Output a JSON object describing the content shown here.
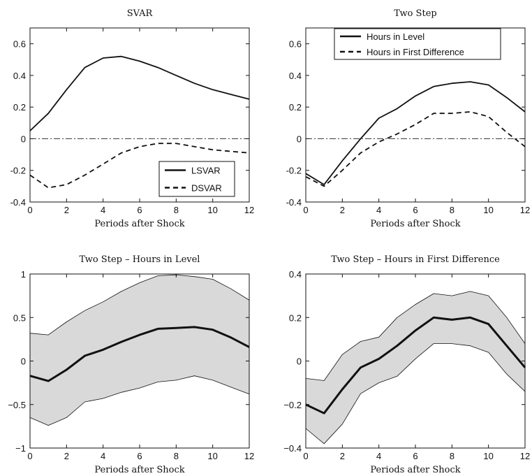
{
  "chart_data": [
    {
      "type": "line",
      "title": "SVAR",
      "xlabel": "Periods after Shock",
      "ylabel": "",
      "xlim": [
        0,
        12
      ],
      "ylim": [
        -0.4,
        0.7
      ],
      "xticks": [
        0,
        2,
        4,
        6,
        8,
        10,
        12
      ],
      "xtick_labels": [
        "0",
        "2",
        "4",
        "6",
        "8",
        "10",
        "12"
      ],
      "yticks": [
        -0.4,
        -0.2,
        0,
        0.2,
        0.4,
        0.6
      ],
      "ytick_labels": [
        "-0.4",
        "-0.2",
        "0",
        "0.2",
        "0.4",
        "0.6"
      ],
      "zero_line": true,
      "legend": "bottom-right",
      "x": [
        0,
        1,
        2,
        3,
        4,
        5,
        6,
        7,
        8,
        9,
        10,
        11,
        12
      ],
      "series": [
        {
          "name": "LSVAR",
          "style": "solid",
          "values": [
            0.05,
            0.16,
            0.31,
            0.45,
            0.51,
            0.52,
            0.49,
            0.45,
            0.4,
            0.35,
            0.31,
            0.28,
            0.25
          ]
        },
        {
          "name": "DSVAR",
          "style": "dashed",
          "values": [
            -0.23,
            -0.31,
            -0.29,
            -0.23,
            -0.16,
            -0.09,
            -0.05,
            -0.03,
            -0.03,
            -0.05,
            -0.07,
            -0.08,
            -0.09
          ]
        }
      ]
    },
    {
      "type": "line",
      "title": "Two Step",
      "xlabel": "Periods after Shock",
      "ylabel": "",
      "xlim": [
        0,
        12
      ],
      "ylim": [
        -0.4,
        0.7
      ],
      "xticks": [
        0,
        2,
        4,
        6,
        8,
        10,
        12
      ],
      "xtick_labels": [
        "0",
        "2",
        "4",
        "6",
        "8",
        "10",
        "12"
      ],
      "yticks": [
        -0.4,
        -0.2,
        0,
        0.2,
        0.4,
        0.6
      ],
      "ytick_labels": [
        "-0.4",
        "-0.2",
        "0",
        "0.2",
        "0.4",
        "0.6"
      ],
      "zero_line": true,
      "legend": "top-right",
      "x": [
        0,
        1,
        2,
        3,
        4,
        5,
        6,
        7,
        8,
        9,
        10,
        11,
        12
      ],
      "series": [
        {
          "name": "Hours in Level",
          "style": "solid",
          "values": [
            -0.22,
            -0.29,
            -0.14,
            0.0,
            0.13,
            0.19,
            0.27,
            0.33,
            0.35,
            0.36,
            0.34,
            0.26,
            0.17
          ]
        },
        {
          "name": "Hours in First Difference",
          "style": "dashed",
          "values": [
            -0.24,
            -0.3,
            -0.2,
            -0.09,
            -0.02,
            0.03,
            0.09,
            0.16,
            0.16,
            0.17,
            0.14,
            0.04,
            -0.05
          ]
        }
      ]
    },
    {
      "type": "area",
      "title": "Two Step – Hours in Level",
      "xlabel": "Periods after Shock",
      "ylabel": "",
      "xlim": [
        0,
        12
      ],
      "ylim": [
        -1,
        1
      ],
      "xticks": [
        0,
        2,
        4,
        6,
        8,
        10,
        12
      ],
      "xtick_labels": [
        "0",
        "2",
        "4",
        "6",
        "8",
        "10",
        "12"
      ],
      "yticks": [
        -1,
        -0.5,
        0,
        0.5,
        1
      ],
      "ytick_labels": [
        "−1",
        "−0.5",
        "0",
        "0.5",
        "1"
      ],
      "zero_line": false,
      "band_color": "#d9d9d9",
      "x": [
        0,
        1,
        2,
        3,
        4,
        5,
        6,
        7,
        8,
        9,
        10,
        11,
        12
      ],
      "series": [
        {
          "name": "",
          "style": "thick",
          "values": [
            -0.17,
            -0.23,
            -0.1,
            0.06,
            0.13,
            0.22,
            0.3,
            0.37,
            0.38,
            0.39,
            0.36,
            0.27,
            0.16
          ]
        },
        {
          "name": "",
          "role": "upper",
          "values": [
            0.32,
            0.3,
            0.45,
            0.58,
            0.68,
            0.8,
            0.9,
            0.98,
            0.99,
            0.97,
            0.94,
            0.83,
            0.7
          ]
        },
        {
          "name": "",
          "role": "lower",
          "values": [
            -0.65,
            -0.74,
            -0.65,
            -0.47,
            -0.43,
            -0.36,
            -0.31,
            -0.24,
            -0.22,
            -0.17,
            -0.22,
            -0.3,
            -0.38
          ]
        }
      ]
    },
    {
      "type": "area",
      "title": "Two Step – Hours in First Difference",
      "xlabel": "Periods after Shock",
      "ylabel": "",
      "xlim": [
        0,
        12
      ],
      "ylim": [
        -0.4,
        0.4
      ],
      "xticks": [
        0,
        2,
        4,
        6,
        8,
        10,
        12
      ],
      "xtick_labels": [
        "0",
        "2",
        "4",
        "6",
        "8",
        "10",
        "12"
      ],
      "yticks": [
        -0.4,
        -0.2,
        0,
        0.2,
        0.4
      ],
      "ytick_labels": [
        "−0.4",
        "−0.2",
        "0",
        "0.2",
        "0.4"
      ],
      "zero_line": false,
      "band_color": "#d9d9d9",
      "x": [
        0,
        1,
        2,
        3,
        4,
        5,
        6,
        7,
        8,
        9,
        10,
        11,
        12
      ],
      "series": [
        {
          "name": "",
          "style": "thick",
          "values": [
            -0.2,
            -0.24,
            -0.13,
            -0.03,
            0.01,
            0.07,
            0.14,
            0.2,
            0.19,
            0.2,
            0.17,
            0.07,
            -0.03
          ]
        },
        {
          "name": "",
          "role": "upper",
          "values": [
            -0.08,
            -0.09,
            0.03,
            0.09,
            0.11,
            0.2,
            0.26,
            0.31,
            0.3,
            0.32,
            0.3,
            0.2,
            0.08
          ]
        },
        {
          "name": "",
          "role": "lower",
          "values": [
            -0.31,
            -0.38,
            -0.29,
            -0.15,
            -0.1,
            -0.07,
            0.01,
            0.08,
            0.08,
            0.07,
            0.04,
            -0.06,
            -0.14
          ]
        }
      ]
    }
  ]
}
